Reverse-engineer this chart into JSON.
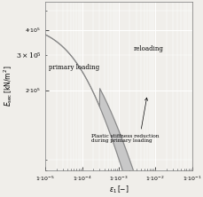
{
  "xlabel": "$\\varepsilon_1\\,[-]$",
  "ylabel": "$E_{\\mathrm{sec}}\\,[\\mathrm{kN/m^2}]$",
  "xmin": 1e-05,
  "xmax": 0.1,
  "ymin": 80000.0,
  "ymax": 550000.0,
  "yticks": [
    200000.0,
    400000.0
  ],
  "ytick_labels": [
    "$2{\\cdot}10^5$",
    "$4{\\cdot}10^5$"
  ],
  "xticks": [
    1e-05,
    0.0001,
    0.001,
    0.01,
    0.1
  ],
  "xtick_labels": [
    "$1{\\cdot}10^{-5}$",
    "$1{\\cdot}10^{-4}$",
    "$1{\\cdot}10^{-3}$",
    "$1{\\cdot}10^{-2}$",
    "$1{\\cdot}10^{-1}$"
  ],
  "label_primary": "primary loading",
  "label_reloading": "reloading",
  "label_plastic": "Plastic stiffness reduction\nduring primary loading",
  "bg_color": "#f0eeea",
  "line_color": "#888888",
  "fill_color": "#c8c8c8",
  "grid_color": "#ffffff"
}
